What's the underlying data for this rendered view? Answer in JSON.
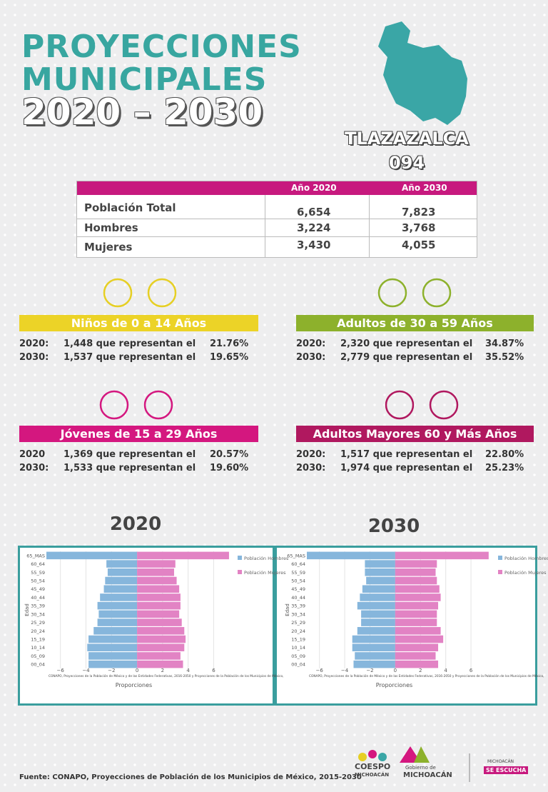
{
  "header": {
    "title_line1": "PROYECCIONES",
    "title_line2": "MUNICIPALES",
    "years": "2020 – 2030",
    "municipality": "TLAZAZALCA",
    "code": "094"
  },
  "table": {
    "columns": [
      "Año 2020",
      "Año 2030"
    ],
    "rows": [
      [
        "Población Total",
        "6,654",
        "7,823"
      ],
      [
        "Hombres",
        "3,224",
        "3,768"
      ],
      [
        "Mujeres",
        "3,430",
        "4,055"
      ]
    ]
  },
  "groups": [
    {
      "title": "Niños de 0 a 14 Años",
      "rows": [
        [
          "2020:",
          "1,448 que representan el",
          "21.76%"
        ],
        [
          "2030:",
          "1,537 que representan el",
          "19.65%"
        ]
      ]
    },
    {
      "title": "Adultos de 30 a 59 Años",
      "rows": [
        [
          "2020:",
          "2,320 que representan el",
          "34.87%"
        ],
        [
          "2030:",
          "2,779 que representan el",
          "35.52%"
        ]
      ]
    },
    {
      "title": "Jóvenes de 15 a 29 Años",
      "rows": [
        [
          "2020",
          "1,369 que representan el",
          "20.57%"
        ],
        [
          "2030:",
          "1,533 que representan el",
          "19.60%"
        ]
      ]
    },
    {
      "title": "Adultos Mayores  60 y Más Años",
      "rows": [
        [
          "2020:",
          "1,517 que representan el",
          "22.80%"
        ],
        [
          "2030:",
          "1,974 que representan el",
          "25.23%"
        ]
      ]
    }
  ],
  "chart_data": [
    {
      "type": "pyramid",
      "title": "2020",
      "y_label": "Edad",
      "x_label": "Proporciones",
      "note": "CONAPO, Proyecciones de la Población de México y de las Entidades Federativas, 2016-2050 y Proyecciones de la Población de los Municipios de México,",
      "categories": [
        "65_MAS",
        "60_64",
        "55_59",
        "50_54",
        "45_49",
        "40_44",
        "35_39",
        "30_34",
        "25_29",
        "20_24",
        "15_19",
        "10_14",
        "05_09",
        "00_04"
      ],
      "series": [
        {
          "name": "Población Hombres",
          "color": "#86b6dc",
          "values": [
            -7.1,
            -2.4,
            -2.3,
            -2.5,
            -2.6,
            -2.9,
            -3.1,
            -3.0,
            -3.1,
            -3.4,
            -3.8,
            -3.9,
            -3.8,
            -3.8
          ]
        },
        {
          "name": "Población Mujeres",
          "color": "#e283c4",
          "values": [
            7.2,
            3.0,
            2.9,
            3.1,
            3.3,
            3.4,
            3.4,
            3.3,
            3.5,
            3.7,
            3.8,
            3.7,
            3.4,
            3.6
          ]
        }
      ],
      "xlim": [
        -7.1,
        10.5
      ],
      "xticks": [
        {
          "value": -6,
          "label": "−6"
        },
        {
          "value": -4,
          "label": "−4"
        },
        {
          "value": -2,
          "label": "−2"
        },
        0,
        2,
        4,
        6
      ],
      "grid": true
    },
    {
      "type": "pyramid",
      "title": "2030",
      "y_label": "Edad",
      "x_label": "Proporciones",
      "note": "CONAPO, Proyecciones de la Población de México y de las Entidades Federativas, 2016-2050 y Proyecciones de la Población de los Municipios de México,",
      "categories": [
        "65_MAS",
        "60_64",
        "55_59",
        "50_54",
        "45_49",
        "40_44",
        "35_39",
        "30_34",
        "25_29",
        "20_24",
        "15_19",
        "10_14",
        "05_09",
        "00_04"
      ],
      "series": [
        {
          "name": "Población Hombres",
          "color": "#86b6dc",
          "values": [
            -7.0,
            -2.4,
            -2.4,
            -2.3,
            -2.6,
            -2.8,
            -3.0,
            -2.7,
            -2.7,
            -3.0,
            -3.4,
            -3.4,
            -3.2,
            -3.3
          ]
        },
        {
          "name": "Población Mujeres",
          "color": "#e283c4",
          "values": [
            7.4,
            3.3,
            3.2,
            3.3,
            3.5,
            3.6,
            3.4,
            3.3,
            3.3,
            3.6,
            3.8,
            3.4,
            3.2,
            3.4
          ]
        }
      ],
      "xlim": [
        -7,
        10.8
      ],
      "xticks": [
        {
          "value": -6,
          "label": "−6"
        },
        {
          "value": -4,
          "label": "−4"
        },
        {
          "value": -2,
          "label": "−2"
        },
        0,
        2,
        4,
        6
      ],
      "grid": true
    }
  ],
  "footer": {
    "source": "Fuente: CONAPO, Proyecciones de Población de los Municipios de México, 2015-2030",
    "logo1": "COESPO",
    "logo1b": "MICHOACÁN",
    "logo2": "Gobierno de",
    "logo2b": "MICHOACÁN",
    "logo3": "MICHOACÁN",
    "logo3b": "SE ESCUCHA"
  }
}
